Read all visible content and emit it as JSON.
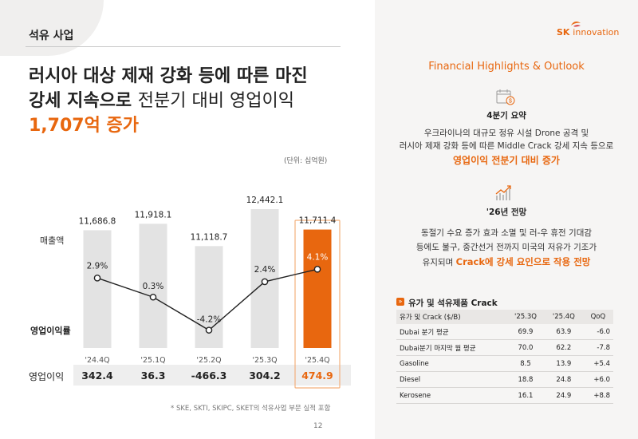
{
  "section": {
    "tag": "석유 사업"
  },
  "headline": {
    "line1": "러시아 대상 제재 강화 등에 따른 마진",
    "line2_bold": "강세 지속으로",
    "line2_thin": "전분기 대비 영업이익",
    "line3": "1,707억 증가"
  },
  "unit": "(단위: 십억원)",
  "row_labels": {
    "sales": "매출액",
    "margin": "영업이익률",
    "op_profit": "영업이익"
  },
  "chart_data": {
    "type": "bar",
    "title": "",
    "categories": [
      "'24.4Q",
      "'25.1Q",
      "'25.2Q",
      "'25.3Q",
      "'25.4Q"
    ],
    "series": [
      {
        "name": "매출액",
        "type": "bar",
        "values": [
          11686.8,
          11918.1,
          11118.7,
          12442.1,
          11711.4
        ],
        "labels": [
          "11,686.8",
          "11,918.1",
          "11,118.7",
          "12,442.1",
          "11,711.4"
        ]
      },
      {
        "name": "영업이익률",
        "type": "line",
        "unit": "%",
        "values": [
          2.9,
          0.3,
          -4.2,
          2.4,
          4.1
        ],
        "labels": [
          "2.9%",
          "0.3%",
          "-4.2%",
          "2.4%",
          "4.1%"
        ]
      },
      {
        "name": "영업이익",
        "type": "table",
        "values": [
          342.4,
          36.3,
          -466.3,
          304.2,
          474.9
        ],
        "labels": [
          "342.4",
          "36.3",
          "-466.3",
          "304.2",
          "474.9"
        ]
      }
    ],
    "highlight_index": 4,
    "xlabel": "",
    "ylabel": ""
  },
  "colors": {
    "accent": "#e8670f",
    "bar": "#e3e3e3",
    "line": "#222222"
  },
  "footnote": "* SKE, SKTI, SKIPC, SKET의 석유사업 부문 실적 포함",
  "page_number": "12",
  "brand": {
    "sk": "SK",
    "name": "innovation"
  },
  "right": {
    "title": "Financial Highlights & Outlook",
    "q4": {
      "icon": "calendar-icon",
      "heading": "4분기 요약",
      "line1": "우크라이나의 대규모 정유 시설 Drone 공격 및",
      "line2": "러시아 제재 강화 등에 따른 Middle Crack 강세 지속 등으로",
      "emph": "영업이익 전분기 대비 증가"
    },
    "outlook": {
      "icon": "growth-chart-icon",
      "heading": "'26년 전망",
      "line1": "동절기 수요 증가 효과 소멸 및 러-우 휴전 기대감",
      "line2": "등에도 불구, 중간선거 전까지 미국의 저유가 기조가",
      "line3_plain": "유지되며",
      "line3_emph": "Crack에 강세 요인으로 작용 전망"
    },
    "table": {
      "title": "유가 및 석유제품 Crack",
      "headers": [
        "유가 및 Crack ($/B)",
        "'25.3Q",
        "'25.4Q",
        "QoQ"
      ],
      "rows": [
        [
          "Dubai 분기 평균",
          "69.9",
          "63.9",
          "-6.0"
        ],
        [
          "Dubai분기 마지막 월 평균",
          "70.0",
          "62.2",
          "-7.8"
        ],
        [
          "Gasoline",
          "8.5",
          "13.9",
          "+5.4"
        ],
        [
          "Diesel",
          "18.8",
          "24.8",
          "+6.0"
        ],
        [
          "Kerosene",
          "16.1",
          "24.9",
          "+8.8"
        ]
      ]
    }
  }
}
